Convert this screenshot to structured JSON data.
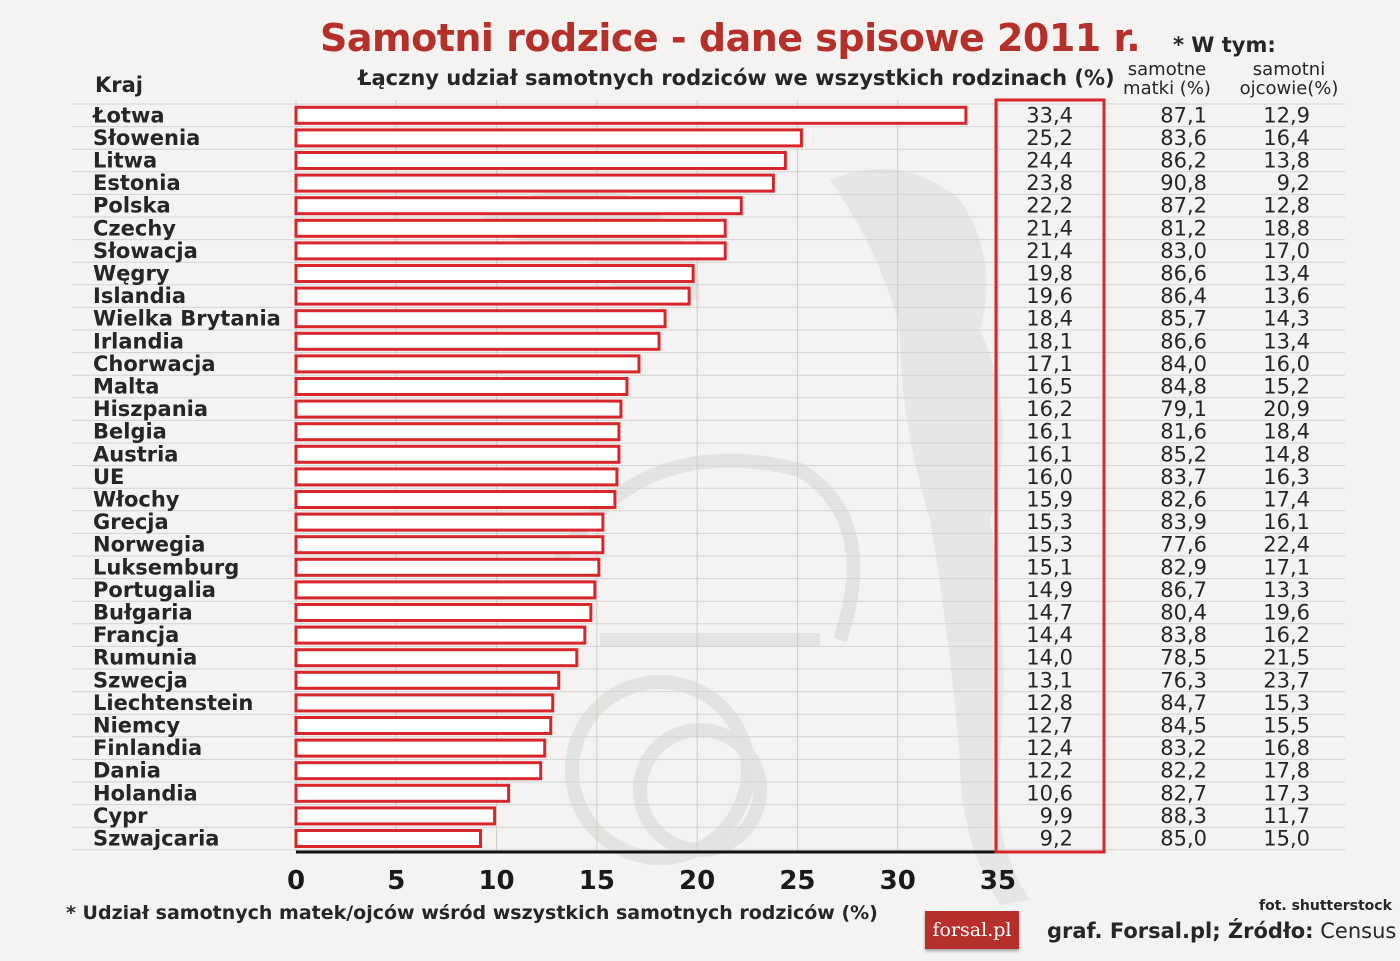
{
  "header": {
    "title": "Samotni rodzice - dane spisowe 2011 r.",
    "subtitle": "Łączny udział samotnych rodziców we wszystkich rodzinach (%)",
    "country_column": "Kraj",
    "breakdown_label": "* W tym:",
    "mothers_label_line1": "samotne",
    "mothers_label_line2": "matki (%)",
    "fathers_label_line1": "samotni",
    "fathers_label_line2": "ojcowie(%)"
  },
  "footer": {
    "footnote": "* Udział samotnych matek/ojców wśród wszystkich samotnych rodziców (%)",
    "photo_credit": "fot. shutterstock",
    "logo_text": "forsal.pl",
    "source_prefix": "graf. Forsal.pl; Źródło:",
    "source_name": "Census Hub"
  },
  "colors": {
    "title": "#b5302a",
    "bar_outline": "#d8262a",
    "bar_fill": "#ffffff",
    "highlight_box": "#d8262a",
    "text": "#262626"
  },
  "chart_data": {
    "type": "bar",
    "orientation": "horizontal",
    "title": "Samotni rodzice - dane spisowe 2011 r.",
    "subtitle": "Łączny udział samotnych rodziców we wszystkich rodzinach (%)",
    "xlim": [
      0,
      35
    ],
    "xticks": [
      "0",
      "5",
      "10",
      "15",
      "20",
      "25",
      "30",
      "35"
    ],
    "grid": "vertical and horizontal gridlines",
    "categories": [
      "Łotwa",
      "Słowenia",
      "Litwa",
      "Estonia",
      "Polska",
      "Czechy",
      "Słowacja",
      "Węgry",
      "Islandia",
      "Wielka Brytania",
      "Irlandia",
      "Chorwacja",
      "Malta",
      "Hiszpania",
      "Belgia",
      "Austria",
      "UE",
      "Włochy",
      "Grecja",
      "Norwegia",
      "Luksemburg",
      "Portugalia",
      "Bułgaria",
      "Francja",
      "Rumunia",
      "Szwecja",
      "Liechtenstein",
      "Niemcy",
      "Finlandia",
      "Dania",
      "Holandia",
      "Cypr",
      "Szwajcaria"
    ],
    "values": [
      33.4,
      25.2,
      24.4,
      23.8,
      22.2,
      21.4,
      21.4,
      19.8,
      19.6,
      18.4,
      18.1,
      17.1,
      16.5,
      16.2,
      16.1,
      16.1,
      16.0,
      15.9,
      15.3,
      15.3,
      15.1,
      14.9,
      14.7,
      14.4,
      14.0,
      13.1,
      12.8,
      12.7,
      12.4,
      12.2,
      10.6,
      9.9,
      9.2
    ],
    "value_labels": [
      "33,4",
      "25,2",
      "24,4",
      "23,8",
      "22,2",
      "21,4",
      "21,4",
      "19,8",
      "19,6",
      "18,4",
      "18,1",
      "17,1",
      "16,5",
      "16,2",
      "16,1",
      "16,1",
      "16,0",
      "15,9",
      "15,3",
      "15,3",
      "15,1",
      "14,9",
      "14,7",
      "14,4",
      "14,0",
      "13,1",
      "12,8",
      "12,7",
      "12,4",
      "12,2",
      "10,6",
      "9,9",
      "9,2"
    ],
    "single_mothers_pct": [
      "87,1",
      "83,6",
      "86,2",
      "90,8",
      "87,2",
      "81,2",
      "83,0",
      "86,6",
      "86,4",
      "85,7",
      "86,6",
      "84,0",
      "84,8",
      "79,1",
      "81,6",
      "85,2",
      "83,7",
      "82,6",
      "83,9",
      "77,6",
      "82,9",
      "86,7",
      "80,4",
      "83,8",
      "78,5",
      "76,3",
      "84,7",
      "84,5",
      "83,2",
      "82,2",
      "82,7",
      "88,3",
      "85,0"
    ],
    "single_fathers_pct": [
      "12,9",
      "16,4",
      "13,8",
      "9,2",
      "12,8",
      "18,8",
      "17,0",
      "13,4",
      "13,6",
      "14,3",
      "13,4",
      "16,0",
      "15,2",
      "20,9",
      "18,4",
      "14,8",
      "16,3",
      "17,4",
      "16,1",
      "22,4",
      "17,1",
      "13,3",
      "19,6",
      "16,2",
      "21,5",
      "23,7",
      "15,3",
      "15,5",
      "16,8",
      "17,8",
      "17,3",
      "11,7",
      "15,0"
    ]
  }
}
